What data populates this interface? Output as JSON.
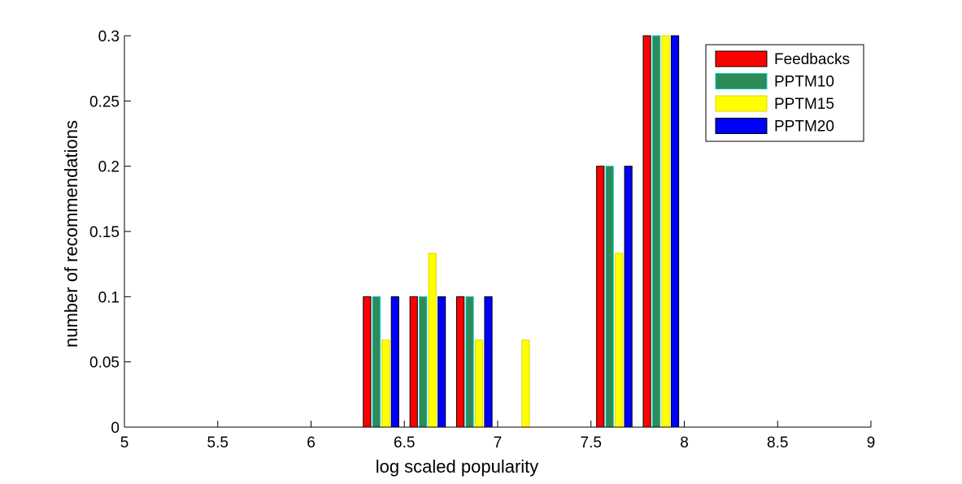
{
  "chart_data": {
    "type": "bar",
    "title": "",
    "xlabel": "log scaled popularity",
    "ylabel": "number of recommendations",
    "xlim": [
      5,
      9
    ],
    "ylim": [
      0,
      0.3
    ],
    "xticks": [
      "5",
      "5.5",
      "6",
      "6.5",
      "7",
      "7.5",
      "8",
      "8.5",
      "9"
    ],
    "yticks": [
      "0",
      "0.05",
      "0.1",
      "0.15",
      "0.2",
      "0.25",
      "0.3"
    ],
    "grid": false,
    "legend_position": "top-right",
    "bin_centers": [
      5.125,
      5.375,
      5.625,
      5.875,
      6.125,
      6.375,
      6.625,
      6.875,
      7.125,
      7.375,
      7.625,
      7.875,
      8.125,
      8.375,
      8.625,
      8.875
    ],
    "series": [
      {
        "name": "Feedbacks",
        "color": "#ff0000",
        "edge": "#000000",
        "values": [
          0,
          0,
          0,
          0,
          0,
          0.1,
          0.1,
          0.1,
          0,
          0,
          0.2,
          0.3,
          0,
          0,
          0,
          0
        ]
      },
      {
        "name": "PPTM10",
        "color": "#2e8b57",
        "edge": "#00cccc",
        "values": [
          0,
          0,
          0,
          0,
          0,
          0.1,
          0.1,
          0.1,
          0,
          0,
          0.2,
          0.3,
          0,
          0,
          0,
          0
        ]
      },
      {
        "name": "PPTM15",
        "color": "#ffff00",
        "edge": "#d8d800",
        "values": [
          0,
          0,
          0,
          0,
          0,
          0.0667,
          0.1333,
          0.0667,
          0.0667,
          0,
          0.1333,
          0.3,
          0,
          0,
          0,
          0
        ]
      },
      {
        "name": "PPTM20",
        "color": "#0000ff",
        "edge": "#000000",
        "values": [
          0,
          0,
          0,
          0,
          0,
          0.1,
          0.1,
          0.1,
          0,
          0,
          0.2,
          0.3,
          0,
          0,
          0,
          0
        ]
      }
    ]
  }
}
